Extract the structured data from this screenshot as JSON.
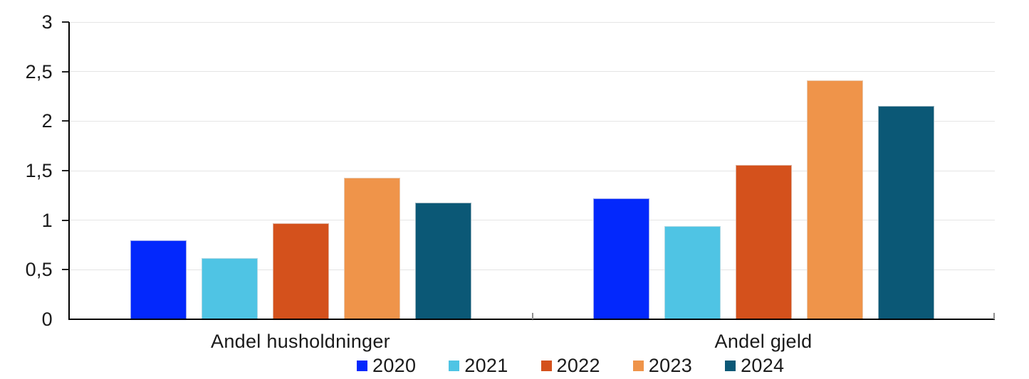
{
  "chart_data": {
    "type": "bar",
    "title": "",
    "xlabel": "",
    "ylabel": "",
    "categories": [
      "Andel husholdninger",
      "Andel gjeld"
    ],
    "series": [
      {
        "name": "2020",
        "color": "#0328fc",
        "values": [
          0.8,
          1.22
        ]
      },
      {
        "name": "2021",
        "color": "#4fc4e4",
        "values": [
          0.62,
          0.94
        ]
      },
      {
        "name": "2022",
        "color": "#d4511c",
        "values": [
          0.97,
          1.56
        ]
      },
      {
        "name": "2023",
        "color": "#ef944a",
        "values": [
          1.43,
          2.41
        ]
      },
      {
        "name": "2024",
        "color": "#0b5876",
        "values": [
          1.18,
          2.15
        ]
      }
    ],
    "ylim": [
      0,
      3
    ],
    "ytick_step": 0.5,
    "yticks": [
      {
        "value": 0,
        "label": "0"
      },
      {
        "value": 0.5,
        "label": "0,5"
      },
      {
        "value": 1,
        "label": "1"
      },
      {
        "value": 1.5,
        "label": "1,5"
      },
      {
        "value": 2,
        "label": "2"
      },
      {
        "value": 2.5,
        "label": "2,5"
      },
      {
        "value": 3,
        "label": "3"
      }
    ],
    "decimal_separator": ",",
    "grid": true,
    "legend_position": "bottom",
    "legend_labels": [
      "2020",
      "2021",
      "2022",
      "2023",
      "2024"
    ]
  },
  "colors": {
    "axis": "#000000",
    "gridline": "#e5e5e5",
    "x_tick": "#8f8f8f",
    "text": "#1a1a1a",
    "background": "#ffffff"
  }
}
